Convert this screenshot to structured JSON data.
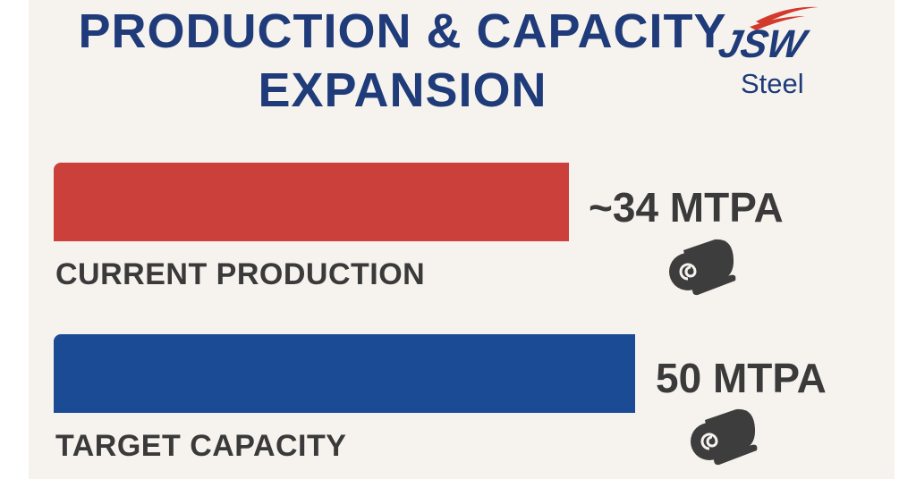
{
  "title_line1": "PRODUCTION & CAPACITY",
  "title_line2": "EXPANSION",
  "logo": {
    "brand": "JSW",
    "sub": "Steel"
  },
  "colors": {
    "title": "#1f3b7a",
    "current": "#cc403c",
    "target": "#1c4b95",
    "background": "#f6f3ee"
  },
  "chart_data": {
    "type": "bar",
    "orientation": "horizontal",
    "categories": [
      "CURRENT PRODUCTION",
      "TARGET CAPACITY"
    ],
    "values": [
      34,
      50
    ],
    "value_labels": [
      "~34 MTPA",
      "50 MTPA"
    ],
    "unit": "MTPA",
    "title": "PRODUCTION & CAPACITY EXPANSION",
    "icons": [
      "steel-coil-icon",
      "steel-coil-icon"
    ]
  }
}
